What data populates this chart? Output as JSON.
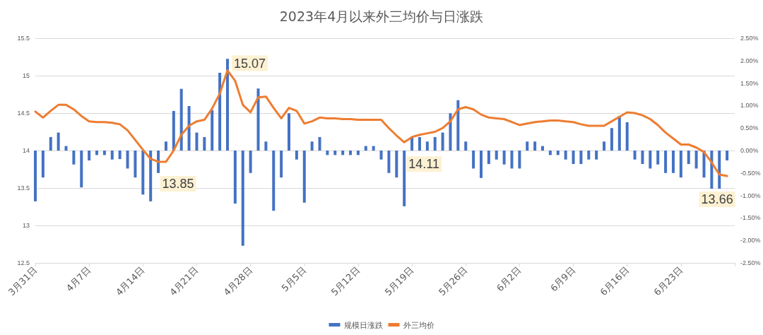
{
  "chart_data": {
    "type": "bar",
    "title": "2023年4月以来外三均价与日涨跌",
    "x": [
      "2023-03-31",
      "2023-04-01",
      "2023-04-02",
      "2023-04-03",
      "2023-04-04",
      "2023-04-05",
      "2023-04-06",
      "2023-04-07",
      "2023-04-08",
      "2023-04-09",
      "2023-04-10",
      "2023-04-11",
      "2023-04-12",
      "2023-04-13",
      "2023-04-14",
      "2023-04-15",
      "2023-04-16",
      "2023-04-17",
      "2023-04-18",
      "2023-04-19",
      "2023-04-20",
      "2023-04-21",
      "2023-04-22",
      "2023-04-23",
      "2023-04-24",
      "2023-04-25",
      "2023-04-26",
      "2023-04-27",
      "2023-04-28",
      "2023-04-29",
      "2023-04-30",
      "2023-05-01",
      "2023-05-02",
      "2023-05-03",
      "2023-05-04",
      "2023-05-05",
      "2023-05-06",
      "2023-05-07",
      "2023-05-08",
      "2023-05-09",
      "2023-05-10",
      "2023-05-11",
      "2023-05-12",
      "2023-05-13",
      "2023-05-14",
      "2023-05-15",
      "2023-05-16",
      "2023-05-17",
      "2023-05-18",
      "2023-05-19",
      "2023-05-20",
      "2023-05-21",
      "2023-05-22",
      "2023-05-23",
      "2023-05-24",
      "2023-05-25",
      "2023-05-26",
      "2023-05-27",
      "2023-05-28",
      "2023-05-29",
      "2023-05-30",
      "2023-05-31",
      "2023-06-01",
      "2023-06-02",
      "2023-06-03",
      "2023-06-04",
      "2023-06-05",
      "2023-06-06",
      "2023-06-07",
      "2023-06-08",
      "2023-06-09",
      "2023-06-10",
      "2023-06-11",
      "2023-06-12",
      "2023-06-13",
      "2023-06-14",
      "2023-06-15",
      "2023-06-16",
      "2023-06-17",
      "2023-06-18",
      "2023-06-19",
      "2023-06-20",
      "2023-06-21",
      "2023-06-22",
      "2023-06-23",
      "2023-06-24",
      "2023-06-25",
      "2023-06-26",
      "2023-06-27",
      "2023-06-28",
      "2023-06-29"
    ],
    "series": [
      {
        "name": "规模日涨跌",
        "axis": "y2",
        "color": "#4472c4",
        "values": [
          -1.13,
          -0.6,
          0.3,
          0.4,
          0.1,
          -0.31,
          -0.82,
          -0.22,
          -0.1,
          -0.1,
          -0.2,
          -0.19,
          -0.4,
          -0.6,
          -0.98,
          -1.13,
          -0.5,
          0.2,
          0.88,
          1.37,
          0.99,
          0.4,
          0.3,
          0.9,
          1.73,
          2.04,
          -1.18,
          -2.12,
          -0.5,
          1.38,
          0.2,
          -1.34,
          -0.6,
          0.83,
          -0.2,
          -1.16,
          0.2,
          0.3,
          -0.1,
          -0.1,
          -0.1,
          -0.1,
          -0.1,
          0.1,
          0.1,
          -0.2,
          -0.5,
          -0.6,
          -1.24,
          0.3,
          0.3,
          0.2,
          0.3,
          0.4,
          0.83,
          1.12,
          0.2,
          -0.4,
          -0.61,
          -0.3,
          -0.2,
          -0.31,
          -0.4,
          -0.4,
          0.2,
          0.2,
          0.1,
          -0.1,
          -0.1,
          -0.2,
          -0.3,
          -0.3,
          -0.2,
          -0.2,
          0.2,
          0.5,
          0.77,
          0.63,
          -0.2,
          -0.3,
          -0.4,
          -0.31,
          -0.5,
          -0.5,
          -0.6,
          -0.3,
          -0.4,
          -0.6,
          -0.85,
          -0.85,
          -0.22
        ]
      },
      {
        "name": "外三均价",
        "type": "line",
        "color": "#ed7d31",
        "values": [
          14.52,
          14.44,
          14.53,
          14.61,
          14.61,
          14.55,
          14.46,
          14.39,
          14.38,
          14.38,
          14.37,
          14.35,
          14.27,
          14.14,
          14.01,
          13.89,
          13.85,
          13.85,
          14.0,
          14.21,
          14.33,
          14.39,
          14.41,
          14.56,
          14.76,
          15.07,
          14.93,
          14.61,
          14.51,
          14.71,
          14.72,
          14.57,
          14.43,
          14.57,
          14.53,
          14.36,
          14.39,
          14.44,
          14.43,
          14.43,
          14.42,
          14.42,
          14.41,
          14.41,
          14.41,
          14.41,
          14.3,
          14.2,
          14.11,
          14.18,
          14.21,
          14.23,
          14.25,
          14.3,
          14.39,
          14.55,
          14.58,
          14.55,
          14.48,
          14.44,
          14.43,
          14.42,
          14.38,
          14.34,
          14.36,
          14.38,
          14.39,
          14.4,
          14.4,
          14.39,
          14.38,
          14.35,
          14.33,
          14.33,
          14.33,
          14.39,
          14.45,
          14.51,
          14.5,
          14.47,
          14.42,
          14.34,
          14.24,
          14.16,
          14.08,
          14.08,
          14.04,
          13.98,
          13.84,
          13.68,
          13.66
        ],
        "value_labels": [
          null,
          null,
          null,
          null,
          null,
          null,
          null,
          null,
          null,
          null,
          null,
          null,
          null,
          null,
          null,
          null,
          "13.85",
          null,
          null,
          null,
          null,
          null,
          null,
          null,
          null,
          "15.07",
          null,
          null,
          null,
          null,
          null,
          null,
          null,
          null,
          null,
          null,
          null,
          null,
          null,
          null,
          null,
          null,
          null,
          null,
          null,
          null,
          null,
          null,
          "14.11",
          null,
          null,
          null,
          null,
          null,
          null,
          null,
          null,
          null,
          null,
          null,
          null,
          null,
          null,
          null,
          null,
          null,
          null,
          null,
          null,
          null,
          null,
          null,
          null,
          null,
          null,
          null,
          null,
          null,
          null,
          null,
          null,
          null,
          null,
          null,
          null,
          null,
          null,
          null,
          null,
          null,
          "13.66"
        ]
      }
    ],
    "xlim": [
      "2023-03-31",
      "2023-06-30"
    ],
    "xticks": [
      {
        "value": "2023-03-31",
        "label": "3月31日"
      },
      {
        "value": "2023-04-07",
        "label": "4月7日"
      },
      {
        "value": "2023-04-14",
        "label": "4月14日"
      },
      {
        "value": "2023-04-21",
        "label": "4月21日"
      },
      {
        "value": "2023-04-28",
        "label": "4月28日"
      },
      {
        "value": "2023-05-05",
        "label": "5月5日"
      },
      {
        "value": "2023-05-12",
        "label": "5月12日"
      },
      {
        "value": "2023-05-19",
        "label": "5月19日"
      },
      {
        "value": "2023-05-26",
        "label": "5月26日"
      },
      {
        "value": "2023-06-02",
        "label": "6月2日"
      },
      {
        "value": "2023-06-09",
        "label": "6月9日"
      },
      {
        "value": "2023-06-16",
        "label": "6月16日"
      },
      {
        "value": "2023-06-23",
        "label": "6月23日"
      },
      {
        "value": "2023-06-30",
        "label": null
      }
    ],
    "ylim": [
      12.5,
      15.5
    ],
    "yticks": [
      12.5,
      13,
      13.5,
      14,
      14.5,
      15,
      15.5
    ],
    "y2lim": [
      -2.5,
      2.5
    ],
    "y2ticks": [
      {
        "value": -2.5,
        "label": "-2.50%"
      },
      {
        "value": -2,
        "label": "-2.00%"
      },
      {
        "value": -1.5,
        "label": "-1.50%"
      },
      {
        "value": -1,
        "label": "-1.00%"
      },
      {
        "value": -0.5,
        "label": "-0.50%"
      },
      {
        "value": 0,
        "label": "0.00%"
      },
      {
        "value": 0.5,
        "label": "0.50%"
      },
      {
        "value": 1,
        "label": "1.00%"
      },
      {
        "value": 1.5,
        "label": "1.50%"
      },
      {
        "value": 2,
        "label": "2.00%"
      },
      {
        "value": 2.5,
        "label": "2.50%"
      }
    ],
    "grid": "y",
    "legend": "bottom",
    "marker": "none",
    "line_style": "solid"
  }
}
